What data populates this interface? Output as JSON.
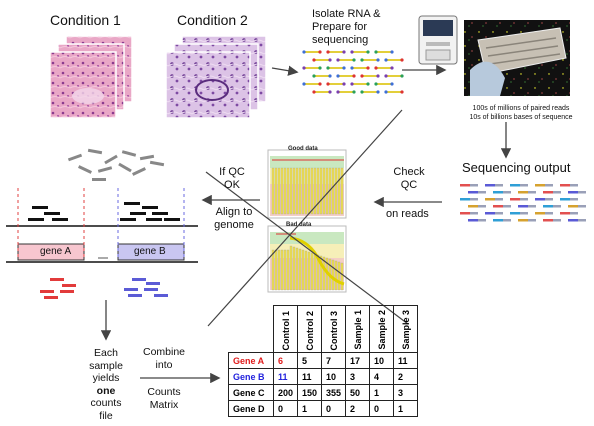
{
  "conditions": {
    "c1": "Condition 1",
    "c2": "Condition 2"
  },
  "steps": {
    "isolate": [
      "Isolate RNA &",
      "Prepare for",
      "sequencing"
    ],
    "reads_info": [
      "100s of millions of paired reads",
      "10s of billions bases of sequence"
    ],
    "seq_output": "Sequencing output",
    "check_qc": [
      "Check",
      "QC",
      "on reads"
    ],
    "if_qc": [
      "If QC",
      "OK"
    ],
    "align": [
      "Align to",
      "genome"
    ],
    "each_sample": [
      "Each",
      "sample",
      "yields",
      "one",
      "counts",
      "file"
    ],
    "combine": [
      "Combine",
      "into",
      "Counts",
      "Matrix"
    ]
  },
  "qc": {
    "good": "Good data",
    "bad": "Bad data"
  },
  "genes": {
    "a": "gene A",
    "b": "gene B"
  },
  "colors": {
    "gene_a": "#e01b1b",
    "gene_b": "#2222dd",
    "read_red": "#e23b3b",
    "read_blue": "#5b5bd6",
    "gene_a_box": "#f7c6cf",
    "gene_b_box": "#c9c6f1",
    "marker_red": "#e04040",
    "marker_blue": "#6a6ae0"
  },
  "matrix": {
    "columns": [
      "Control 1",
      "Control 2",
      "Control 3",
      "Sample 1",
      "Sample 2",
      "Sample 3"
    ],
    "rows": [
      {
        "gene": "Gene A",
        "values": [
          "6",
          "5",
          "7",
          "17",
          "10",
          "11"
        ]
      },
      {
        "gene": "Gene B",
        "values": [
          "11",
          "11",
          "10",
          "3",
          "4",
          "2"
        ]
      },
      {
        "gene": "Gene C",
        "values": [
          "200",
          "150",
          "355",
          "50",
          "1",
          "3"
        ]
      },
      {
        "gene": "Gene D",
        "values": [
          "0",
          "1",
          "0",
          "2",
          "0",
          "1"
        ]
      }
    ]
  }
}
